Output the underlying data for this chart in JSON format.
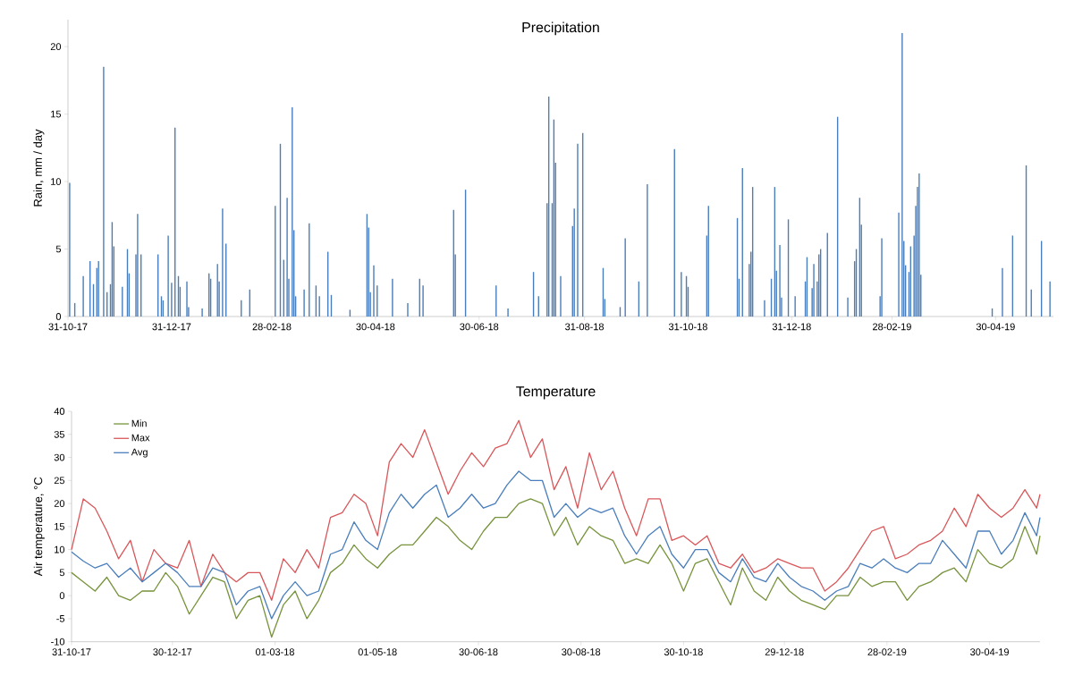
{
  "chart_data": [
    {
      "type": "bar",
      "title": "Precipitation",
      "ylabel": "Rain, mm / day",
      "color": "#4a7ebb",
      "x": [
        "2017-11-01",
        "2017-11-04",
        "2017-11-09",
        "2017-11-13",
        "2017-11-15",
        "2017-11-17",
        "2017-11-18",
        "2017-11-21",
        "2017-11-23",
        "2017-11-25",
        "2017-11-26",
        "2017-11-27",
        "2017-12-02",
        "2017-12-05",
        "2017-12-06",
        "2017-12-10",
        "2017-12-11",
        "2017-12-13",
        "2017-12-23",
        "2017-12-25",
        "2017-12-26",
        "2017-12-29",
        "2017-12-31",
        "2018-01-02",
        "2018-01-04",
        "2018-01-05",
        "2018-01-09",
        "2018-01-10",
        "2018-01-18",
        "2018-01-22",
        "2018-01-23",
        "2018-01-27",
        "2018-01-28",
        "2018-01-30",
        "2018-02-01",
        "2018-02-10",
        "2018-02-15",
        "2018-03-02",
        "2018-03-05",
        "2018-03-07",
        "2018-03-09",
        "2018-03-10",
        "2018-03-12",
        "2018-03-13",
        "2018-03-14",
        "2018-03-19",
        "2018-03-22",
        "2018-03-26",
        "2018-03-28",
        "2018-04-02",
        "2018-04-04",
        "2018-04-15",
        "2018-04-25",
        "2018-04-26",
        "2018-04-27",
        "2018-04-29",
        "2018-05-01",
        "2018-05-10",
        "2018-05-19",
        "2018-05-26",
        "2018-05-28",
        "2018-06-15",
        "2018-06-16",
        "2018-06-22",
        "2018-07-10",
        "2018-07-17",
        "2018-08-01",
        "2018-08-04",
        "2018-08-09",
        "2018-08-10",
        "2018-08-12",
        "2018-08-13",
        "2018-08-14",
        "2018-08-17",
        "2018-08-24",
        "2018-08-25",
        "2018-08-27",
        "2018-08-30",
        "2018-09-11",
        "2018-09-12",
        "2018-09-21",
        "2018-09-24",
        "2018-10-02",
        "2018-10-07",
        "2018-10-23",
        "2018-10-27",
        "2018-10-30",
        "2018-10-31",
        "2018-11-11",
        "2018-11-12",
        "2018-11-29",
        "2018-11-30",
        "2018-12-02",
        "2018-12-06",
        "2018-12-07",
        "2018-12-08",
        "2018-12-15",
        "2018-12-19",
        "2018-12-21",
        "2018-12-22",
        "2018-12-24",
        "2018-12-25",
        "2018-12-29",
        "2019-01-02",
        "2019-01-08",
        "2019-01-09",
        "2019-01-12",
        "2019-01-13",
        "2019-01-15",
        "2019-01-16",
        "2019-01-17",
        "2019-01-21",
        "2019-01-27",
        "2019-02-02",
        "2019-02-06",
        "2019-02-07",
        "2019-02-09",
        "2019-02-10",
        "2019-02-21",
        "2019-02-22",
        "2019-03-04",
        "2019-03-06",
        "2019-03-07",
        "2019-03-08",
        "2019-03-10",
        "2019-03-11",
        "2019-03-13",
        "2019-03-14",
        "2019-03-15",
        "2019-03-16",
        "2019-03-17",
        "2019-04-28",
        "2019-05-04",
        "2019-05-10",
        "2019-05-18",
        "2019-05-21",
        "2019-05-27",
        "2019-06-01"
      ],
      "values": [
        9.9,
        1.0,
        3.0,
        4.1,
        2.4,
        3.6,
        4.1,
        18.5,
        1.8,
        2.4,
        7.0,
        5.2,
        2.2,
        5.0,
        3.2,
        4.6,
        7.6,
        4.6,
        4.6,
        1.5,
        1.2,
        6.0,
        2.5,
        14.0,
        3.0,
        2.2,
        2.6,
        0.7,
        0.6,
        3.2,
        2.8,
        3.9,
        2.6,
        8.0,
        5.4,
        1.2,
        2.0,
        8.2,
        12.8,
        4.2,
        8.8,
        2.8,
        15.5,
        6.4,
        1.5,
        2.0,
        6.9,
        2.3,
        1.5,
        4.8,
        1.6,
        0.5,
        7.6,
        6.6,
        1.8,
        3.8,
        2.3,
        2.8,
        1.0,
        2.8,
        2.3,
        7.9,
        4.6,
        9.4,
        2.3,
        0.6,
        3.3,
        1.5,
        8.4,
        16.3,
        8.4,
        14.6,
        11.4,
        3.0,
        6.7,
        8.0,
        12.8,
        13.6,
        3.6,
        1.3,
        0.7,
        5.8,
        2.6,
        9.8,
        12.4,
        3.3,
        3.0,
        2.2,
        6.0,
        8.2,
        7.3,
        2.8,
        11.0,
        3.9,
        4.8,
        9.6,
        1.2,
        2.8,
        9.6,
        3.4,
        5.3,
        1.4,
        7.2,
        1.5,
        2.6,
        4.4,
        2.1,
        3.9,
        2.6,
        4.6,
        5.0,
        6.2,
        14.8,
        1.4,
        4.1,
        5.0,
        8.8,
        6.8,
        1.5,
        5.8,
        7.7,
        21.0,
        5.6,
        3.8,
        3.3,
        5.2,
        6.0,
        8.2,
        9.6,
        10.6,
        3.1,
        0.6,
        3.6,
        6.0,
        11.2,
        2.0,
        5.6,
        2.6
      ],
      "xlim": [
        "2017-10-31",
        "2019-06-03"
      ],
      "ylim": [
        0,
        22
      ],
      "yticks": [
        0,
        5,
        10,
        15,
        20
      ],
      "xticks": [
        {
          "value": "2017-10-31",
          "label": "31-10-17"
        },
        {
          "value": "2017-12-31",
          "label": "31-12-17"
        },
        {
          "value": "2018-02-28",
          "label": "28-02-18"
        },
        {
          "value": "2018-04-30",
          "label": "30-04-18"
        },
        {
          "value": "2018-06-30",
          "label": "30-06-18"
        },
        {
          "value": "2018-08-31",
          "label": "31-08-18"
        },
        {
          "value": "2018-10-31",
          "label": "31-10-18"
        },
        {
          "value": "2018-12-31",
          "label": "31-12-18"
        },
        {
          "value": "2019-02-28",
          "label": "28-02-19"
        },
        {
          "value": "2019-04-30",
          "label": "30-04-19"
        }
      ]
    },
    {
      "type": "line",
      "title": "Temperature",
      "ylabel": "Air temperature, °C",
      "legend": "top left",
      "x": [
        "2017-10-31",
        "2017-11-07",
        "2017-11-14",
        "2017-11-21",
        "2017-11-28",
        "2017-12-05",
        "2017-12-12",
        "2017-12-19",
        "2017-12-26",
        "2018-01-02",
        "2018-01-09",
        "2018-01-16",
        "2018-01-23",
        "2018-01-30",
        "2018-02-06",
        "2018-02-13",
        "2018-02-20",
        "2018-02-27",
        "2018-03-06",
        "2018-03-13",
        "2018-03-20",
        "2018-03-27",
        "2018-04-03",
        "2018-04-10",
        "2018-04-17",
        "2018-04-24",
        "2018-05-01",
        "2018-05-08",
        "2018-05-15",
        "2018-05-22",
        "2018-05-29",
        "2018-06-05",
        "2018-06-12",
        "2018-06-19",
        "2018-06-26",
        "2018-07-03",
        "2018-07-10",
        "2018-07-17",
        "2018-07-24",
        "2018-07-31",
        "2018-08-07",
        "2018-08-14",
        "2018-08-21",
        "2018-08-28",
        "2018-09-04",
        "2018-09-11",
        "2018-09-18",
        "2018-09-25",
        "2018-10-02",
        "2018-10-09",
        "2018-10-16",
        "2018-10-23",
        "2018-10-30",
        "2018-11-06",
        "2018-11-13",
        "2018-11-20",
        "2018-11-27",
        "2018-12-04",
        "2018-12-11",
        "2018-12-18",
        "2018-12-25",
        "2019-01-01",
        "2019-01-08",
        "2019-01-15",
        "2019-01-22",
        "2019-01-29",
        "2019-02-05",
        "2019-02-12",
        "2019-02-19",
        "2019-02-26",
        "2019-03-05",
        "2019-03-12",
        "2019-03-19",
        "2019-03-26",
        "2019-04-02",
        "2019-04-09",
        "2019-04-16",
        "2019-04-23",
        "2019-04-30",
        "2019-05-07",
        "2019-05-14",
        "2019-05-21",
        "2019-05-28",
        "2019-05-30"
      ],
      "series": [
        {
          "name": "Min",
          "color": "#77933c",
          "values": [
            5,
            3,
            1,
            4,
            0,
            -1,
            1,
            1,
            5,
            2,
            -4,
            0,
            4,
            3,
            -5,
            -1,
            0,
            -9,
            -2,
            1,
            -5,
            -1,
            5,
            7,
            11,
            8,
            6,
            9,
            11,
            11,
            14,
            17,
            15,
            12,
            10,
            14,
            17,
            17,
            20,
            21,
            20,
            13,
            17,
            11,
            15,
            13,
            12,
            7,
            8,
            7,
            11,
            7,
            1,
            7,
            8,
            3,
            -2,
            6,
            1,
            -1,
            4,
            1,
            -1,
            -2,
            -3,
            0,
            0,
            4,
            2,
            3,
            3,
            -1,
            2,
            3,
            5,
            6,
            3,
            10,
            7,
            6,
            8,
            15,
            9,
            13
          ]
        },
        {
          "name": "Max",
          "color": "#d9575a",
          "values": [
            10,
            21,
            19,
            14,
            8,
            12,
            3,
            10,
            7,
            6,
            12,
            2,
            9,
            5,
            3,
            5,
            5,
            -1,
            8,
            5,
            10,
            6,
            17,
            18,
            22,
            20,
            13,
            29,
            33,
            30,
            36,
            29,
            22,
            27,
            31,
            28,
            32,
            33,
            38,
            30,
            34,
            23,
            28,
            19,
            31,
            23,
            27,
            19,
            13,
            21,
            21,
            12,
            13,
            11,
            13,
            7,
            6,
            9,
            5,
            6,
            8,
            7,
            6,
            6,
            1,
            3,
            6,
            10,
            14,
            15,
            8,
            9,
            11,
            12,
            14,
            19,
            15,
            22,
            19,
            17,
            19,
            23,
            19,
            22
          ]
        },
        {
          "name": "Avg",
          "color": "#4a7ebb",
          "values": [
            9.5,
            7.5,
            6,
            7,
            4,
            6,
            3,
            5,
            7,
            5,
            2,
            2,
            6,
            5,
            -2,
            1,
            2,
            -5,
            0,
            3,
            0,
            1,
            9,
            10,
            16,
            12,
            10,
            18,
            22,
            19,
            22,
            24,
            17,
            19,
            22,
            19,
            20,
            24,
            27,
            25,
            25,
            17,
            20,
            17,
            19,
            18,
            19,
            13,
            9,
            13,
            15,
            9,
            6,
            10,
            10,
            5,
            3,
            8,
            4,
            3,
            7,
            4,
            2,
            1,
            -1,
            1,
            2,
            7,
            6,
            8,
            6,
            5,
            7,
            7,
            12,
            9,
            6,
            14,
            14,
            9,
            12,
            18,
            13,
            17
          ]
        }
      ],
      "xlim": [
        "2017-10-31",
        "2019-05-30"
      ],
      "ylim": [
        -10,
        40
      ],
      "yticks": [
        -10,
        -5,
        0,
        5,
        10,
        15,
        20,
        25,
        30,
        35,
        40
      ],
      "xticks": [
        {
          "value": "2017-10-31",
          "label": "31-10-17"
        },
        {
          "value": "2017-12-30",
          "label": "30-12-17"
        },
        {
          "value": "2018-03-01",
          "label": "01-03-18"
        },
        {
          "value": "2018-05-01",
          "label": "01-05-18"
        },
        {
          "value": "2018-06-30",
          "label": "30-06-18"
        },
        {
          "value": "2018-08-30",
          "label": "30-08-18"
        },
        {
          "value": "2018-10-30",
          "label": "30-10-18"
        },
        {
          "value": "2018-12-29",
          "label": "29-12-18"
        },
        {
          "value": "2019-02-28",
          "label": "28-02-19"
        },
        {
          "value": "2019-04-30",
          "label": "30-04-19"
        }
      ]
    }
  ]
}
